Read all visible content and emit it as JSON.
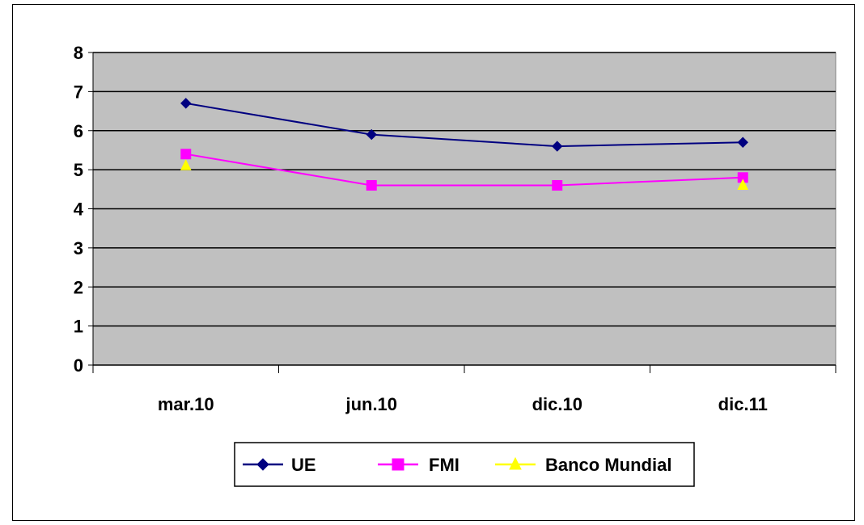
{
  "chart_data": {
    "type": "line",
    "categories": [
      "mar.10",
      "jun.10",
      "dic.10",
      "dic.11"
    ],
    "ylim": [
      0,
      8
    ],
    "yticks": [
      0,
      1,
      2,
      3,
      4,
      5,
      6,
      7,
      8
    ],
    "grid": true,
    "plot_background": "#c0c0c0",
    "legend_position": "bottom",
    "series": [
      {
        "name": "UE",
        "values": [
          6.7,
          5.9,
          5.6,
          5.7
        ],
        "color": "#000080",
        "marker": "diamond"
      },
      {
        "name": "FMI",
        "values": [
          5.4,
          4.6,
          4.6,
          4.8
        ],
        "color": "#ff00ff",
        "marker": "square"
      },
      {
        "name": "Banco Mundial",
        "values": [
          5.1,
          null,
          null,
          4.6
        ],
        "color": "#ffff00",
        "marker": "triangle"
      }
    ]
  }
}
